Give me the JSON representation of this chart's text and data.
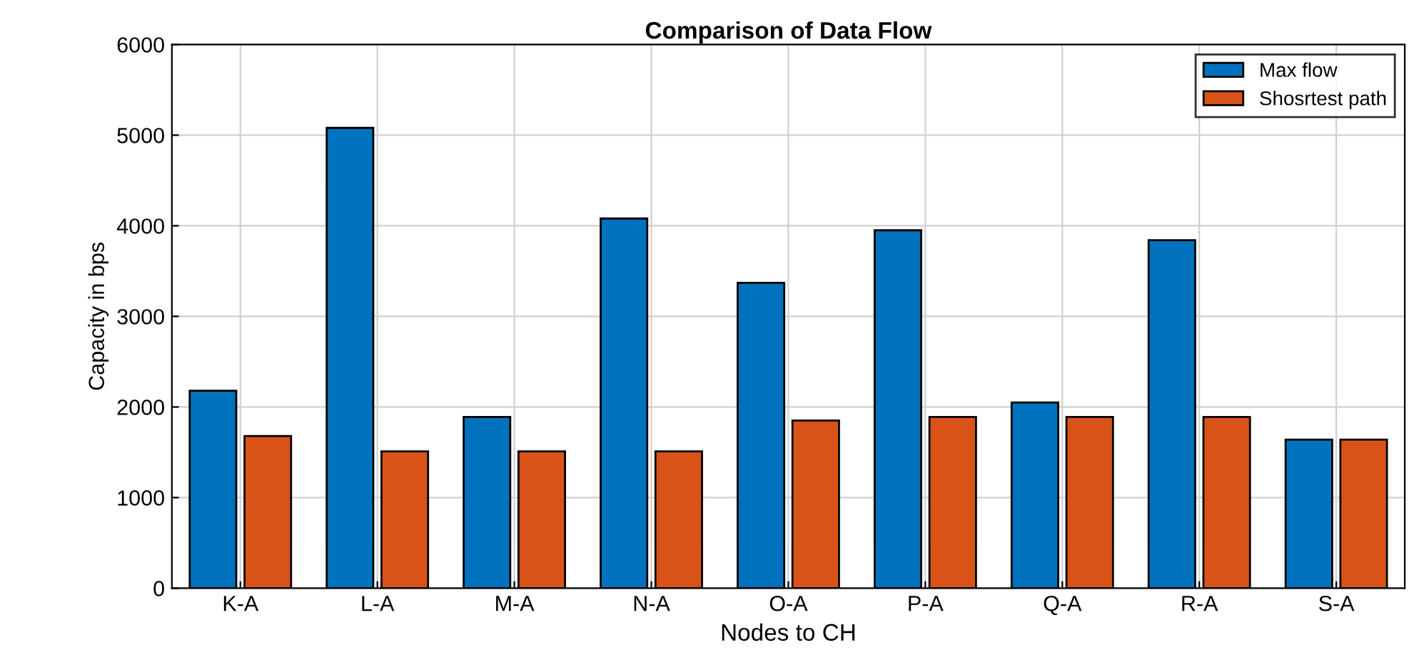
{
  "chart_data": {
    "type": "bar",
    "title": "Comparison of Data Flow",
    "xlabel": "Nodes to CH",
    "ylabel": "Capacity in bps",
    "categories": [
      "K-A",
      "L-A",
      "M-A",
      "N-A",
      "O-A",
      "P-A",
      "Q-A",
      "R-A",
      "S-A"
    ],
    "series": [
      {
        "name": "Max flow",
        "color": "#0072bd",
        "values": [
          2180,
          5080,
          1890,
          4080,
          3370,
          3950,
          2050,
          3840,
          1640
        ]
      },
      {
        "name": "Shosrtest path",
        "color": "#d95319",
        "values": [
          1680,
          1510,
          1510,
          1510,
          1850,
          1890,
          1890,
          1890,
          1640
        ]
      }
    ],
    "ylim": [
      0,
      6000
    ],
    "yticks": [
      0,
      1000,
      2000,
      3000,
      4000,
      5000,
      6000
    ],
    "grid": true,
    "legend": "top right"
  }
}
